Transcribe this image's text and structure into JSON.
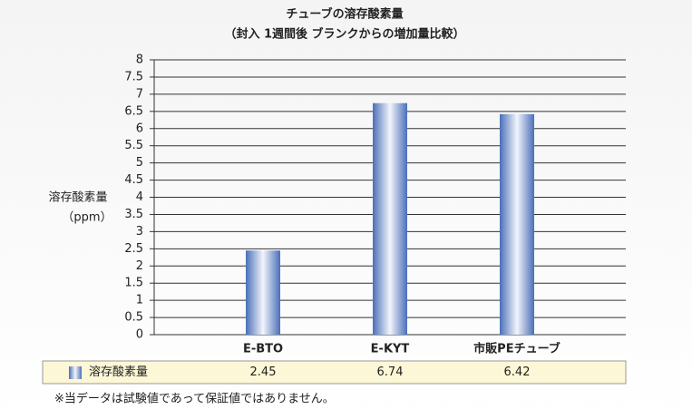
{
  "chart_data": {
    "type": "bar",
    "title": "チューブの溶存酸素量",
    "subtitle": "（封入 1週間後 ブランクからの増加量比較）",
    "y_label": [
      "溶存酸素量",
      "（ppm）"
    ],
    "categories": [
      "E-BTO",
      "E-KYT",
      "市販PEチューブ"
    ],
    "series": [
      {
        "name": "溶存酸素量",
        "color": "#4a6fb8",
        "values": [
          2.45,
          6.74,
          6.42
        ]
      }
    ],
    "ylim": [
      0,
      8
    ],
    "yticks": [
      0,
      0.5,
      1,
      1.5,
      2,
      2.5,
      3,
      3.5,
      4,
      4.5,
      5,
      5.5,
      6,
      6.5,
      7,
      7.5,
      8
    ],
    "grid": true,
    "footnote": "※当データは試験値であって保証値ではありません。"
  }
}
